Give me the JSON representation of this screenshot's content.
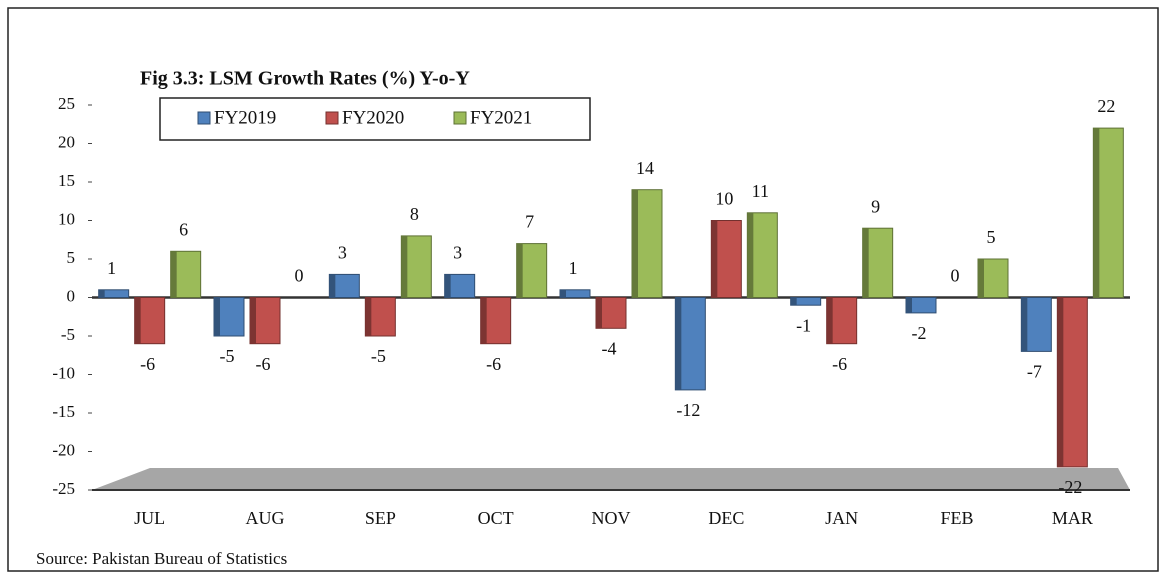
{
  "chart_data": {
    "type": "bar",
    "title": "Fig 3.3: LSM Growth Rates (%) Y-o-Y",
    "source": "Source: Pakistan Bureau of Statistics",
    "categories": [
      "JUL",
      "AUG",
      "SEP",
      "OCT",
      "NOV",
      "DEC",
      "JAN",
      "FEB",
      "MAR"
    ],
    "series": [
      {
        "name": "FY2019",
        "color": "#4f81bd",
        "values": [
          1,
          -5,
          3,
          3,
          1,
          -12,
          -1,
          -2,
          -7
        ]
      },
      {
        "name": "FY2020",
        "color": "#c0504d",
        "values": [
          -6,
          -6,
          -5,
          -6,
          -4,
          10,
          -6,
          0,
          -22
        ]
      },
      {
        "name": "FY2021",
        "color": "#9bbb59",
        "values": [
          6,
          0,
          8,
          7,
          14,
          11,
          9,
          5,
          22
        ]
      }
    ],
    "ylim": [
      -25,
      25
    ],
    "yticks": [
      -25,
      -20,
      -15,
      -10,
      -5,
      0,
      5,
      10,
      15,
      20,
      25
    ],
    "legend": "top-left"
  }
}
